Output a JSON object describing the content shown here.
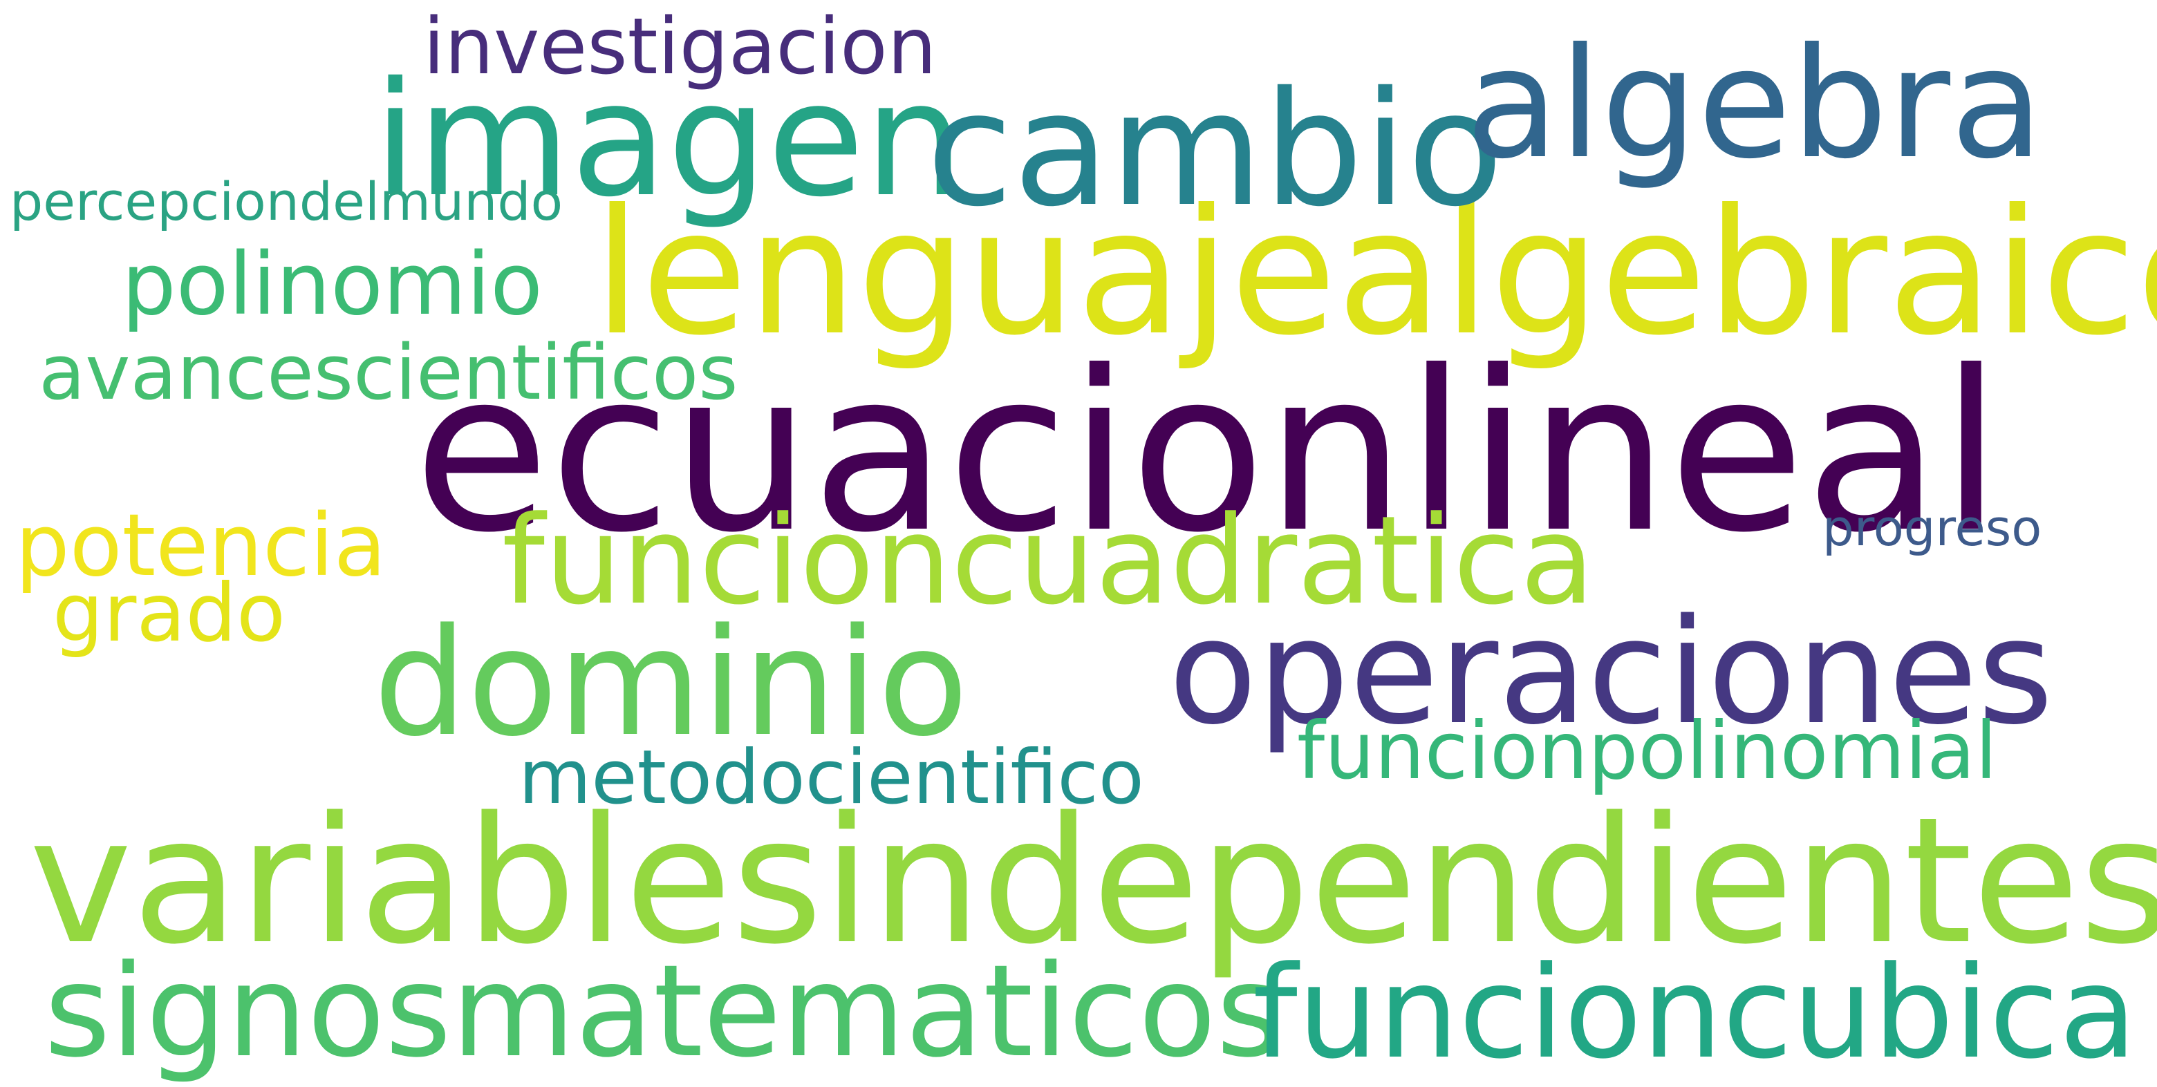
{
  "words": [
    {
      "text": "ecuacionlineal",
      "color": "#440154"
    },
    {
      "text": "variablesindependientes",
      "color": "#94d840"
    },
    {
      "text": "lenguajealgebraico",
      "color": "#dde318"
    },
    {
      "text": "imagen",
      "color": "#25a486"
    },
    {
      "text": "cambio",
      "color": "#26828e"
    },
    {
      "text": "algebra",
      "color": "#31668e"
    },
    {
      "text": "operaciones",
      "color": "#453882"
    },
    {
      "text": "dominio",
      "color": "#64cb5d"
    },
    {
      "text": "funcioncuadratica",
      "color": "#a5db36"
    },
    {
      "text": "signosmatematicos",
      "color": "#4cc26c"
    },
    {
      "text": "funcioncubica",
      "color": "#22a785"
    },
    {
      "text": "investigacion",
      "color": "#472d7b"
    },
    {
      "text": "polinomio",
      "color": "#3bbb75"
    },
    {
      "text": "avancescientificos",
      "color": "#45bf70"
    },
    {
      "text": "potencia",
      "color": "#f1e51d"
    },
    {
      "text": "grado",
      "color": "#e4e419"
    },
    {
      "text": "funcionpolinomial",
      "color": "#35b779"
    },
    {
      "text": "metodocientifico",
      "color": "#21918c"
    },
    {
      "text": "percepciondelmundo",
      "color": "#2aa383"
    },
    {
      "text": "progreso",
      "color": "#3d5a8b"
    }
  ]
}
